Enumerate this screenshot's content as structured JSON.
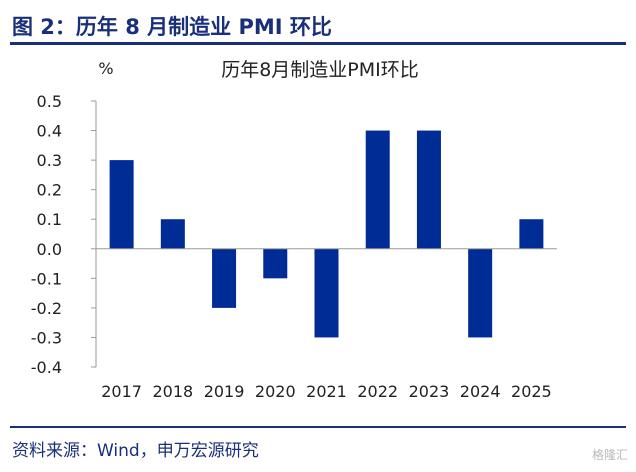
{
  "figure_title": "图 2：历年 8 月制造业 PMI 环比",
  "source_text": "资料来源：Wind，申万宏源研究",
  "watermark_text": "格隆汇",
  "colors": {
    "bar": "#002c96",
    "accent": "#1a2f7a",
    "axis": "#9a9a9a"
  },
  "chart_data": {
    "type": "bar",
    "title": "历年8月制造业PMI环比",
    "ylabel": "%",
    "xlabel": "",
    "categories": [
      "2017",
      "2018",
      "2019",
      "2020",
      "2021",
      "2022",
      "2023",
      "2024",
      "2025"
    ],
    "values": [
      0.3,
      0.1,
      -0.2,
      -0.1,
      -0.3,
      0.4,
      0.4,
      -0.3,
      0.1
    ],
    "ylim": [
      -0.4,
      0.5
    ],
    "yticks": [
      "0.5",
      "0.4",
      "0.3",
      "0.2",
      "0.1",
      "0.0",
      "-0.1",
      "-0.2",
      "-0.3",
      "-0.4"
    ],
    "grid": false,
    "legend": "none"
  }
}
